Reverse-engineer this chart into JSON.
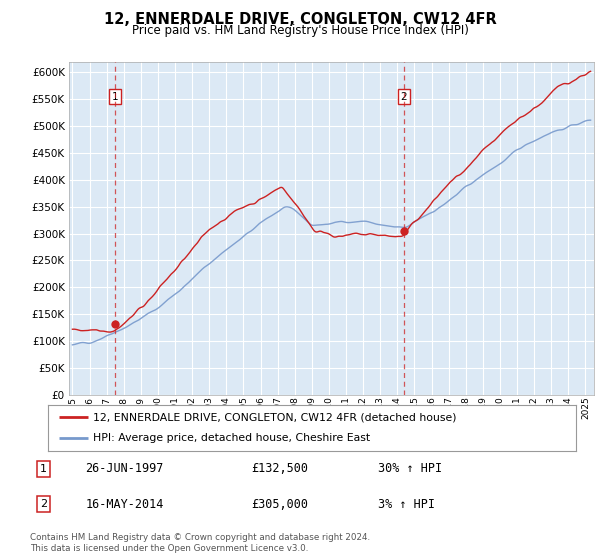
{
  "title": "12, ENNERDALE DRIVE, CONGLETON, CW12 4FR",
  "subtitle": "Price paid vs. HM Land Registry's House Price Index (HPI)",
  "plot_bg_color": "#dce9f5",
  "fig_bg_color": "#ffffff",
  "red_line_color": "#cc2222",
  "blue_line_color": "#7799cc",
  "grid_color": "#ffffff",
  "ylim": [
    0,
    620000
  ],
  "yticks": [
    0,
    50000,
    100000,
    150000,
    200000,
    250000,
    300000,
    350000,
    400000,
    450000,
    500000,
    550000,
    600000
  ],
  "xlim_start": 1994.8,
  "xlim_end": 2025.5,
  "sale1_x": 1997.48,
  "sale1_y": 132500,
  "sale2_x": 2014.37,
  "sale2_y": 305000,
  "sale1_label": "26-JUN-1997",
  "sale1_price": "£132,500",
  "sale1_hpi": "30% ↑ HPI",
  "sale2_label": "16-MAY-2014",
  "sale2_price": "£305,000",
  "sale2_hpi": "3% ↑ HPI",
  "legend_line1": "12, ENNERDALE DRIVE, CONGLETON, CW12 4FR (detached house)",
  "legend_line2": "HPI: Average price, detached house, Cheshire East",
  "footer": "Contains HM Land Registry data © Crown copyright and database right 2024.\nThis data is licensed under the Open Government Licence v3.0."
}
